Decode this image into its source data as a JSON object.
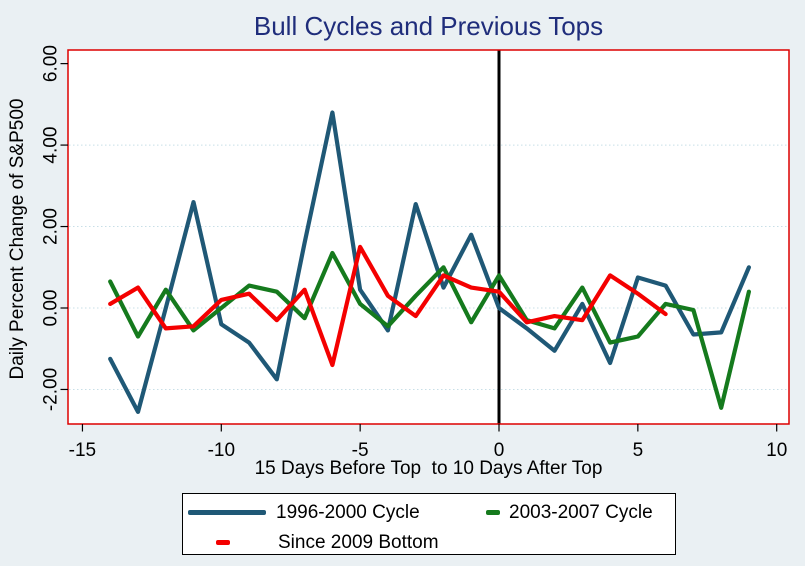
{
  "title": "Bull Cycles and Previous Tops",
  "colors": {
    "background": "#EAF0F3",
    "plot_background": "#FFFFFF",
    "plot_border": "#DD0000",
    "gridline": "#C8DFE7",
    "zero_line": "#000000",
    "title_text": "#1F2D7B",
    "axis_text": "#000000",
    "navy_series": "#1F5876",
    "green_series": "#157A1D",
    "red_series": "#F40000"
  },
  "chart_data": {
    "type": "line",
    "title": "Bull Cycles and Previous Tops",
    "xlabel": "15 Days Before Top  to 10 Days After Top",
    "ylabel": "Daily Percent Change of S&P500",
    "xlim": [
      -15.5,
      10.45
    ],
    "ylim": [
      -2.87,
      6.33
    ],
    "x_ticks": [
      -15,
      -10,
      -5,
      0,
      5,
      10
    ],
    "x_tick_labels": [
      "-15",
      "-10",
      "-5",
      "0",
      "5",
      "10"
    ],
    "y_ticks": [
      6,
      4,
      2,
      0,
      -2
    ],
    "y_tick_labels": [
      "6.00",
      "4.00",
      "2.00",
      "0.00",
      "-2.00"
    ],
    "gridlines_y": [
      4,
      2,
      0,
      -2
    ],
    "grid": "horizontal-dotted",
    "vline_x": 0,
    "legend_position": "bottom",
    "series": [
      {
        "name": "1996-2000 Cycle",
        "color": "#1F5876",
        "x": [
          -14,
          -13,
          -12,
          -11,
          -10,
          -9,
          -8,
          -7,
          -6,
          -5,
          -4,
          -3,
          -2,
          -1,
          0,
          1,
          2,
          3,
          4,
          5,
          6,
          7,
          8,
          9
        ],
        "values": [
          -1.25,
          -2.55,
          0.0,
          2.6,
          -0.4,
          -0.85,
          -1.75,
          1.6,
          4.8,
          0.45,
          -0.55,
          2.55,
          0.5,
          1.8,
          0.0,
          -0.5,
          -1.05,
          0.1,
          -1.35,
          0.75,
          0.55,
          -0.65,
          -0.6,
          1.0
        ]
      },
      {
        "name": "2003-2007 Cycle",
        "color": "#157A1D",
        "x": [
          -14,
          -13,
          -12,
          -11,
          -10,
          -9,
          -8,
          -7,
          -6,
          -5,
          -4,
          -3,
          -2,
          -1,
          0,
          1,
          2,
          3,
          4,
          5,
          6,
          7,
          8,
          9
        ],
        "values": [
          0.65,
          -0.7,
          0.45,
          -0.55,
          0.0,
          0.55,
          0.4,
          -0.25,
          1.35,
          0.1,
          -0.45,
          0.3,
          1.0,
          -0.35,
          0.8,
          -0.3,
          -0.5,
          0.5,
          -0.85,
          -0.7,
          0.1,
          -0.05,
          -2.45,
          0.4
        ]
      },
      {
        "name": "Since 2009 Bottom",
        "color": "#F40000",
        "x": [
          -14,
          -13,
          -12,
          -11,
          -10,
          -9,
          -8,
          -7,
          -6,
          -5,
          -4,
          -3,
          -2,
          -1,
          0,
          1,
          2,
          3,
          4,
          5,
          6
        ],
        "values": [
          0.1,
          0.5,
          -0.5,
          -0.45,
          0.2,
          0.35,
          -0.3,
          0.45,
          -1.4,
          1.5,
          0.3,
          -0.2,
          0.8,
          0.5,
          0.4,
          -0.35,
          -0.2,
          -0.3,
          0.8,
          0.35,
          -0.15
        ]
      }
    ]
  }
}
